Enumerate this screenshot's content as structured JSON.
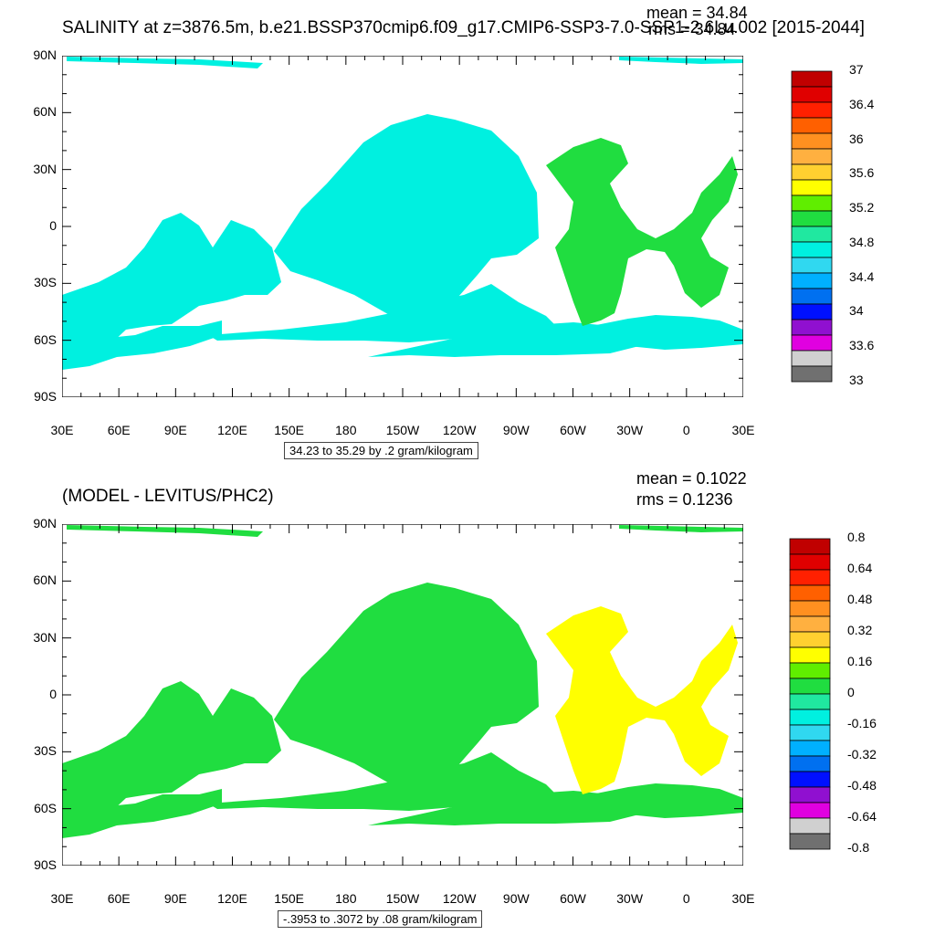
{
  "top_panel": {
    "title": "SALINITY at z=3876.5m, b.e21.BSSP370cmip6.f09_g17.CMIP6-SSP3-7.0-SSP1-2.6Lu.002 [2015-2044]",
    "mean_text": "mean = 34.84",
    "rms_text": "rms = 34.84",
    "range_text": "34.23 to 35.29 by .2 gram/kilogram",
    "colorbar_labels": [
      "37",
      "36.4",
      "36",
      "35.6",
      "35.2",
      "34.8",
      "34.4",
      "34",
      "33.6",
      "33"
    ]
  },
  "bottom_panel": {
    "title": "(MODEL - LEVITUS/PHC2)",
    "mean_text": "mean = 0.1022",
    "rms_text": "rms = 0.1236",
    "range_text": "-.3953 to .3072 by .08 gram/kilogram",
    "colorbar_labels": [
      "0.8",
      "0.64",
      "0.48",
      "0.32",
      "0.16",
      "0",
      "-0.16",
      "-0.32",
      "-0.48",
      "-0.64",
      "-0.8"
    ]
  },
  "axes": {
    "lat_labels": [
      "90N",
      "60N",
      "30N",
      "0",
      "30S",
      "60S",
      "90S"
    ],
    "lon_labels": [
      "30E",
      "60E",
      "90E",
      "120E",
      "150E",
      "180",
      "150W",
      "120W",
      "90W",
      "60W",
      "30W",
      "0",
      "30E"
    ]
  },
  "colors": {
    "salinity_scale": [
      "#c00000",
      "#e00000",
      "#ff2000",
      "#ff6000",
      "#ff9020",
      "#ffb040",
      "#ffd030",
      "#ffff00",
      "#60ee00",
      "#20dd40",
      "#20e8a0",
      "#00f0e0",
      "#30d8f0",
      "#00b0ff",
      "#0070f0",
      "#0010ff",
      "#9010d0",
      "#e000e0",
      "#d0d0d0",
      "#707070"
    ],
    "anomaly_scale": [
      "#c00000",
      "#e00000",
      "#ff2000",
      "#ff6000",
      "#ff9020",
      "#ffb040",
      "#ffd030",
      "#ffff00",
      "#60ee00",
      "#20dd40",
      "#20e8a0",
      "#00f0e0",
      "#30d8f0",
      "#00b0ff",
      "#0070f0",
      "#0010ff",
      "#9010d0",
      "#e000e0",
      "#d0d0d0",
      "#707070"
    ],
    "top_ocean_main": "#00f0e0",
    "top_ocean_atlantic": "#20dd40",
    "bottom_ocean_main": "#20dd40",
    "bottom_ocean_atlantic": "#ffff00"
  }
}
